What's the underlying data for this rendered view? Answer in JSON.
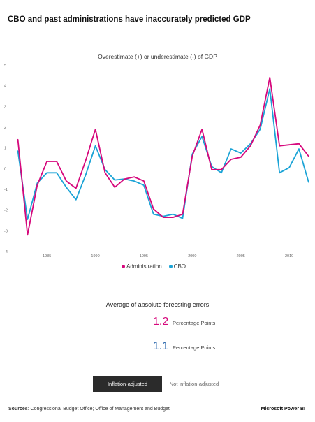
{
  "header": {
    "title": "CBO and past administrations have inaccurately predicted GDP"
  },
  "chart_data": {
    "type": "line",
    "title": "Overestimate (+) or underestimate (-) of GDP",
    "xlabel": "",
    "ylabel": "",
    "x": [
      1982,
      1983,
      1984,
      1985,
      1986,
      1987,
      1988,
      1989,
      1990,
      1991,
      1992,
      1993,
      1994,
      1995,
      1996,
      1997,
      1998,
      1999,
      2000,
      2001,
      2002,
      2003,
      2004,
      2005,
      2006,
      2007,
      2008,
      2009,
      2010,
      2011,
      2012
    ],
    "series": [
      {
        "name": "Administration",
        "color": "#d6087c",
        "values": [
          1.4,
          -3.2,
          -0.8,
          0.35,
          0.35,
          -0.6,
          -0.95,
          0.4,
          1.9,
          -0.2,
          -0.9,
          -0.5,
          -0.4,
          -0.6,
          -1.95,
          -2.35,
          -2.35,
          -2.2,
          0.6,
          1.9,
          -0.05,
          -0.05,
          0.45,
          0.55,
          1.1,
          2.1,
          4.4,
          1.1,
          1.15,
          1.2,
          0.6
        ]
      },
      {
        "name": "CBO",
        "color": "#1aa3d6",
        "values": [
          0.85,
          -2.45,
          -0.7,
          -0.2,
          -0.2,
          -0.9,
          -1.5,
          -0.3,
          1.1,
          -0.05,
          -0.55,
          -0.5,
          -0.6,
          -0.8,
          -2.2,
          -2.3,
          -2.2,
          -2.4,
          0.7,
          1.55,
          0.1,
          -0.2,
          0.95,
          0.75,
          1.2,
          1.9,
          3.85,
          -0.2,
          0.05,
          0.95,
          -0.65
        ]
      }
    ],
    "xlim": [
      1981.6,
      2012.3
    ],
    "ylim": [
      -4,
      5
    ],
    "x_ticks": [
      1985,
      1990,
      1995,
      2000,
      2005,
      2010
    ],
    "y_ticks": [
      5,
      4,
      3,
      2,
      1,
      0,
      -1,
      -2,
      -3,
      -4
    ],
    "grid": false,
    "legend": "bottom"
  },
  "summary": {
    "title": "Average of absolute forecsting errors",
    "metrics": [
      {
        "value": "1.2",
        "unit": "Percentage Points",
        "color": "#d6087c"
      },
      {
        "value": "1.1",
        "unit": "Percentage Points",
        "color": "#1f5fa8"
      }
    ]
  },
  "toggle": {
    "active_label": "Inflation-adjusted",
    "inactive_label": "Not inflation-adjusted"
  },
  "footer": {
    "sources_label": "Sources",
    "sources_text": ": Congressional Budget Office; Office of Management and Budget",
    "brand": "Microsoft Power BI"
  }
}
